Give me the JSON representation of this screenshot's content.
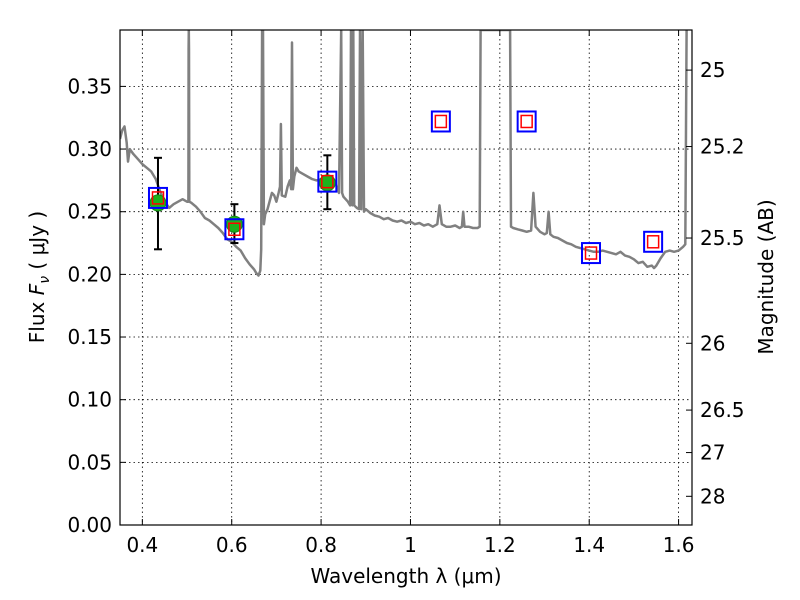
{
  "chart_data": {
    "type": "scatter",
    "xlabel": "Wavelength  λ (μm)",
    "ylabel_prefix": "Flux  ",
    "ylabel_symbol": "F",
    "ylabel_subscript": "ν",
    "ylabel_suffix": "  ( μJy )",
    "right_ylabel": "Magnitude (AB)",
    "xlim": [
      0.35,
      1.63
    ],
    "ylim": [
      0.0,
      0.395
    ],
    "grid": true,
    "x_ticks": [
      {
        "value": 0.4,
        "label": "0.4"
      },
      {
        "value": 0.6,
        "label": "0.6"
      },
      {
        "value": 0.8,
        "label": "0.8"
      },
      {
        "value": 1.0,
        "label": "1"
      },
      {
        "value": 1.2,
        "label": "1.2"
      },
      {
        "value": 1.4,
        "label": "1.4"
      },
      {
        "value": 1.6,
        "label": "1.6"
      }
    ],
    "y_ticks": [
      {
        "value": 0.0,
        "label": "0.00"
      },
      {
        "value": 0.05,
        "label": "0.05"
      },
      {
        "value": 0.1,
        "label": "0.10"
      },
      {
        "value": 0.15,
        "label": "0.15"
      },
      {
        "value": 0.2,
        "label": "0.20"
      },
      {
        "value": 0.25,
        "label": "0.25"
      },
      {
        "value": 0.3,
        "label": "0.30"
      },
      {
        "value": 0.35,
        "label": "0.35"
      }
    ],
    "right_ticks": [
      {
        "flux": 0.363,
        "label": "25"
      },
      {
        "flux": 0.302,
        "label": "25.2"
      },
      {
        "flux": 0.229,
        "label": "25.5"
      },
      {
        "flux": 0.145,
        "label": "26"
      },
      {
        "flux": 0.0917,
        "label": "26.5"
      },
      {
        "flux": 0.0578,
        "label": "27"
      },
      {
        "flux": 0.0229,
        "label": "28"
      }
    ],
    "series": [
      {
        "kind": "spectrum",
        "color": "#808080",
        "points": [
          [
            0.35,
            0.308
          ],
          [
            0.355,
            0.315
          ],
          [
            0.36,
            0.318
          ],
          [
            0.365,
            0.305
          ],
          [
            0.368,
            0.29
          ],
          [
            0.372,
            0.3
          ],
          [
            0.38,
            0.296
          ],
          [
            0.39,
            0.292
          ],
          [
            0.4,
            0.288
          ],
          [
            0.41,
            0.285
          ],
          [
            0.42,
            0.282
          ],
          [
            0.43,
            0.276
          ],
          [
            0.44,
            0.266
          ],
          [
            0.45,
            0.258
          ],
          [
            0.46,
            0.253
          ],
          [
            0.47,
            0.256
          ],
          [
            0.48,
            0.258
          ],
          [
            0.49,
            0.26
          ],
          [
            0.5,
            0.258
          ],
          [
            0.503,
            0.258
          ],
          [
            0.5035,
            0.38
          ],
          [
            0.504,
            0.395
          ],
          [
            0.5045,
            0.38
          ],
          [
            0.505,
            0.258
          ],
          [
            0.51,
            0.257
          ],
          [
            0.52,
            0.254
          ],
          [
            0.53,
            0.25
          ],
          [
            0.54,
            0.245
          ],
          [
            0.55,
            0.243
          ],
          [
            0.56,
            0.24
          ],
          [
            0.57,
            0.237
          ],
          [
            0.58,
            0.233
          ],
          [
            0.59,
            0.228
          ],
          [
            0.6,
            0.226
          ],
          [
            0.61,
            0.222
          ],
          [
            0.62,
            0.219
          ],
          [
            0.63,
            0.213
          ],
          [
            0.64,
            0.208
          ],
          [
            0.65,
            0.204
          ],
          [
            0.655,
            0.201
          ],
          [
            0.66,
            0.199
          ],
          [
            0.664,
            0.203
          ],
          [
            0.666,
            0.22
          ],
          [
            0.668,
            0.395
          ],
          [
            0.67,
            0.395
          ],
          [
            0.672,
            0.24
          ],
          [
            0.675,
            0.248
          ],
          [
            0.68,
            0.252
          ],
          [
            0.69,
            0.265
          ],
          [
            0.695,
            0.263
          ],
          [
            0.7,
            0.258
          ],
          [
            0.705,
            0.265
          ],
          [
            0.708,
            0.27
          ],
          [
            0.71,
            0.32
          ],
          [
            0.712,
            0.263
          ],
          [
            0.72,
            0.262
          ],
          [
            0.725,
            0.27
          ],
          [
            0.73,
            0.275
          ],
          [
            0.733,
            0.268
          ],
          [
            0.735,
            0.385
          ],
          [
            0.737,
            0.268
          ],
          [
            0.74,
            0.278
          ],
          [
            0.745,
            0.285
          ],
          [
            0.75,
            0.282
          ],
          [
            0.76,
            0.28
          ],
          [
            0.77,
            0.278
          ],
          [
            0.78,
            0.276
          ],
          [
            0.79,
            0.275
          ],
          [
            0.8,
            0.276
          ],
          [
            0.81,
            0.278
          ],
          [
            0.82,
            0.278
          ],
          [
            0.83,
            0.275
          ],
          [
            0.84,
            0.265
          ],
          [
            0.845,
            0.395
          ],
          [
            0.847,
            0.265
          ],
          [
            0.85,
            0.262
          ],
          [
            0.86,
            0.258
          ],
          [
            0.865,
            0.255
          ],
          [
            0.867,
            0.395
          ],
          [
            0.87,
            0.255
          ],
          [
            0.872,
            0.395
          ],
          [
            0.874,
            0.255
          ],
          [
            0.88,
            0.253
          ],
          [
            0.885,
            0.252
          ],
          [
            0.887,
            0.395
          ],
          [
            0.89,
            0.252
          ],
          [
            0.893,
            0.395
          ],
          [
            0.896,
            0.25
          ],
          [
            0.9,
            0.252
          ],
          [
            0.91,
            0.249
          ],
          [
            0.92,
            0.247
          ],
          [
            0.93,
            0.246
          ],
          [
            0.94,
            0.244
          ],
          [
            0.95,
            0.245
          ],
          [
            0.96,
            0.243
          ],
          [
            0.97,
            0.242
          ],
          [
            0.98,
            0.243
          ],
          [
            0.99,
            0.241
          ],
          [
            1.0,
            0.242
          ],
          [
            1.01,
            0.24
          ],
          [
            1.02,
            0.241
          ],
          [
            1.03,
            0.239
          ],
          [
            1.04,
            0.24
          ],
          [
            1.05,
            0.238
          ],
          [
            1.06,
            0.24
          ],
          [
            1.065,
            0.255
          ],
          [
            1.07,
            0.24
          ],
          [
            1.08,
            0.238
          ],
          [
            1.09,
            0.238
          ],
          [
            1.1,
            0.239
          ],
          [
            1.11,
            0.237
          ],
          [
            1.115,
            0.238
          ],
          [
            1.118,
            0.25
          ],
          [
            1.121,
            0.238
          ],
          [
            1.13,
            0.238
          ],
          [
            1.14,
            0.237
          ],
          [
            1.15,
            0.237
          ],
          [
            1.155,
            0.238
          ],
          [
            1.157,
            0.395
          ],
          [
            1.223,
            0.395
          ],
          [
            1.225,
            0.238
          ],
          [
            1.23,
            0.237
          ],
          [
            1.24,
            0.236
          ],
          [
            1.25,
            0.235
          ],
          [
            1.26,
            0.234
          ],
          [
            1.27,
            0.235
          ],
          [
            1.275,
            0.265
          ],
          [
            1.28,
            0.238
          ],
          [
            1.29,
            0.234
          ],
          [
            1.3,
            0.232
          ],
          [
            1.305,
            0.233
          ],
          [
            1.309,
            0.25
          ],
          [
            1.313,
            0.232
          ],
          [
            1.32,
            0.23
          ],
          [
            1.33,
            0.229
          ],
          [
            1.34,
            0.227
          ],
          [
            1.35,
            0.225
          ],
          [
            1.36,
            0.224
          ],
          [
            1.37,
            0.222
          ],
          [
            1.38,
            0.221
          ],
          [
            1.39,
            0.22
          ],
          [
            1.4,
            0.219
          ],
          [
            1.41,
            0.218
          ],
          [
            1.42,
            0.218
          ],
          [
            1.43,
            0.219
          ],
          [
            1.44,
            0.218
          ],
          [
            1.45,
            0.217
          ],
          [
            1.46,
            0.216
          ],
          [
            1.47,
            0.218
          ],
          [
            1.48,
            0.215
          ],
          [
            1.49,
            0.214
          ],
          [
            1.5,
            0.212
          ],
          [
            1.51,
            0.209
          ],
          [
            1.52,
            0.21
          ],
          [
            1.53,
            0.206
          ],
          [
            1.54,
            0.207
          ],
          [
            1.545,
            0.205
          ],
          [
            1.55,
            0.207
          ],
          [
            1.56,
            0.213
          ],
          [
            1.57,
            0.218
          ],
          [
            1.58,
            0.219
          ],
          [
            1.59,
            0.218
          ],
          [
            1.6,
            0.219
          ],
          [
            1.61,
            0.222
          ],
          [
            1.615,
            0.224
          ],
          [
            1.618,
            0.395
          ]
        ]
      },
      {
        "kind": "observed",
        "color": "#1cb21c",
        "points": [
          {
            "x": 0.435,
            "y": 0.257,
            "yerr_low": 0.22,
            "yerr_high": 0.293
          },
          {
            "x": 0.606,
            "y": 0.24,
            "yerr_low": 0.225,
            "yerr_high": 0.256
          },
          {
            "x": 0.814,
            "y": 0.273,
            "yerr_low": 0.252,
            "yerr_high": 0.295
          }
        ]
      },
      {
        "kind": "model-photometry",
        "color": "#0000ff",
        "points": [
          {
            "x": 0.435,
            "y": 0.261
          },
          {
            "x": 0.606,
            "y": 0.236
          },
          {
            "x": 0.814,
            "y": 0.274
          },
          {
            "x": 1.068,
            "y": 0.322
          },
          {
            "x": 1.26,
            "y": 0.322
          },
          {
            "x": 1.404,
            "y": 0.217
          },
          {
            "x": 1.543,
            "y": 0.226
          }
        ]
      }
    ]
  }
}
